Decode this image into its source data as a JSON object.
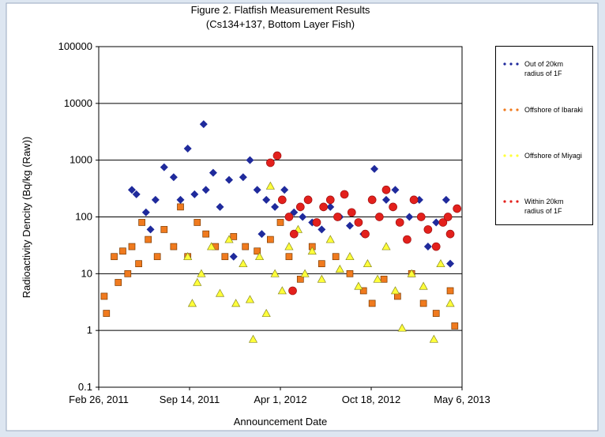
{
  "chart_data": {
    "type": "scatter",
    "title": "Figure 2. Flatfish Measurement Results",
    "subtitle": "(Cs134+137, Bottom Layer Fish)",
    "x_label": "Announcement Date",
    "y_label": "Radioactivity Dencity (Bq/kg (Raw))",
    "y_scale": "log",
    "grid": true,
    "legend_position": "right",
    "xlim": [
      "2011-02-26",
      "2013-05-06"
    ],
    "xticks": [
      {
        "value": "2011-02-26",
        "label": "Feb 26, 2011"
      },
      {
        "value": "2011-09-14",
        "label": "Sep 14, 2011"
      },
      {
        "value": "2012-04-01",
        "label": "Apr 1, 2012"
      },
      {
        "value": "2012-10-18",
        "label": "Oct 18, 2012"
      },
      {
        "value": "2013-05-06",
        "label": "May 6, 2013"
      }
    ],
    "ylim": [
      0.1,
      100000
    ],
    "yticks": [
      0.1,
      1,
      10,
      100,
      1000,
      10000,
      100000
    ],
    "series": [
      {
        "name": "Out of 20km radius of 1F",
        "color": "#1f2a9c",
        "marker": "diamond",
        "x": [
          "2011-05-10",
          "2011-05-20",
          "2011-06-10",
          "2011-07-01",
          "2011-07-20",
          "2011-08-10",
          "2011-08-25",
          "2011-09-10",
          "2011-09-25",
          "2011-10-15",
          "2011-10-20",
          "2011-11-05",
          "2011-11-20",
          "2011-12-10",
          "2012-01-10",
          "2012-01-25",
          "2012-02-10",
          "2012-03-01",
          "2012-03-20",
          "2012-04-10",
          "2012-05-01",
          "2012-05-20",
          "2012-06-10",
          "2012-07-01",
          "2012-07-20",
          "2012-08-10",
          "2012-09-01",
          "2012-10-01",
          "2012-10-25",
          "2012-11-20",
          "2012-12-10",
          "2013-01-10",
          "2013-02-01",
          "2013-02-20",
          "2013-03-10",
          "2013-04-01",
          "2013-04-10",
          "2011-06-20",
          "2011-12-20",
          "2012-02-20"
        ],
        "values": [
          300,
          250,
          120,
          200,
          750,
          500,
          200,
          1600,
          250,
          4300,
          300,
          600,
          150,
          450,
          500,
          1000,
          300,
          200,
          150,
          300,
          120,
          100,
          80,
          60,
          150,
          100,
          70,
          50,
          700,
          200,
          300,
          100,
          200,
          30,
          80,
          200,
          15,
          60,
          20,
          50
        ]
      },
      {
        "name": "Offshore of Ibaraki",
        "color": "#f07a1e",
        "marker": "square",
        "x": [
          "2011-03-10",
          "2011-03-15",
          "2011-04-01",
          "2011-04-10",
          "2011-04-20",
          "2011-05-01",
          "2011-05-10",
          "2011-05-25",
          "2011-06-01",
          "2011-06-15",
          "2011-07-05",
          "2011-07-20",
          "2011-08-10",
          "2011-08-25",
          "2011-09-10",
          "2011-10-01",
          "2011-10-20",
          "2011-11-10",
          "2011-12-01",
          "2011-12-20",
          "2012-01-15",
          "2012-02-10",
          "2012-03-10",
          "2012-04-01",
          "2012-04-20",
          "2012-05-15",
          "2012-06-10",
          "2012-07-01",
          "2012-08-01",
          "2012-09-01",
          "2012-10-01",
          "2012-10-20",
          "2012-11-15",
          "2012-12-15",
          "2013-01-15",
          "2013-02-10",
          "2013-03-10",
          "2013-04-10",
          "2013-04-20"
        ],
        "values": [
          4,
          2,
          20,
          7,
          25,
          10,
          30,
          15,
          80,
          40,
          20,
          60,
          30,
          150,
          20,
          80,
          50,
          30,
          20,
          45,
          30,
          25,
          40,
          80,
          20,
          8,
          30,
          15,
          20,
          10,
          5,
          3,
          8,
          4,
          10,
          3,
          2,
          5,
          1.2
        ]
      },
      {
        "name": "Offshore of Miyagi",
        "color": "#ffff3a",
        "marker": "triangle",
        "x": [
          "2011-09-10",
          "2011-09-20",
          "2011-10-01",
          "2011-10-10",
          "2011-11-01",
          "2011-11-20",
          "2011-12-10",
          "2011-12-25",
          "2012-01-10",
          "2012-01-25",
          "2012-02-01",
          "2012-02-15",
          "2012-03-01",
          "2012-03-10",
          "2012-03-20",
          "2012-04-05",
          "2012-04-20",
          "2012-05-10",
          "2012-05-25",
          "2012-06-10",
          "2012-07-01",
          "2012-07-20",
          "2012-08-10",
          "2012-09-01",
          "2012-09-20",
          "2012-10-10",
          "2012-11-01",
          "2012-11-20",
          "2012-12-10",
          "2012-12-25",
          "2013-01-15",
          "2013-02-10",
          "2013-03-05",
          "2013-03-20",
          "2013-04-10"
        ],
        "values": [
          20,
          3,
          7,
          10,
          30,
          4.5,
          40,
          3,
          15,
          3.5,
          0.7,
          20,
          2,
          350,
          10,
          5,
          30,
          60,
          10,
          25,
          8,
          40,
          12,
          20,
          6,
          15,
          8,
          30,
          5,
          1.1,
          10,
          6,
          0.7,
          15,
          3
        ]
      },
      {
        "name": "Within 20km radius of 1F",
        "color": "#e3201c",
        "marker": "circle",
        "x": [
          "2012-03-10",
          "2012-03-25",
          "2012-04-05",
          "2012-04-20",
          "2012-05-01",
          "2012-05-15",
          "2012-06-01",
          "2012-06-20",
          "2012-07-05",
          "2012-07-20",
          "2012-08-05",
          "2012-08-20",
          "2012-09-05",
          "2012-09-20",
          "2012-10-05",
          "2012-10-20",
          "2012-11-05",
          "2012-11-20",
          "2012-12-05",
          "2012-12-20",
          "2013-01-05",
          "2013-01-20",
          "2013-02-05",
          "2013-02-20",
          "2013-03-10",
          "2013-03-25",
          "2013-04-10",
          "2013-04-25",
          "2012-04-28",
          "2013-04-05"
        ],
        "values": [
          900,
          1200,
          200,
          100,
          50,
          150,
          200,
          80,
          150,
          200,
          100,
          250,
          120,
          80,
          50,
          200,
          100,
          300,
          150,
          80,
          40,
          200,
          100,
          60,
          30,
          80,
          50,
          140,
          5,
          100
        ]
      }
    ]
  }
}
